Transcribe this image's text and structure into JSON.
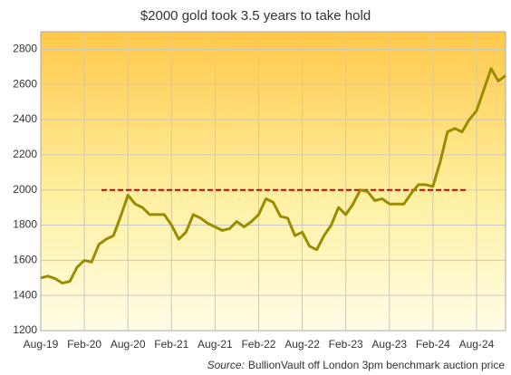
{
  "chart_data": {
    "type": "line",
    "title": "$2000 gold took 3.5 years to take hold",
    "source_label": "Source:",
    "source": "BullionVault off London 3pm benchmark auction price",
    "categories": [
      "Aug-19",
      null,
      null,
      null,
      null,
      null,
      "Feb-20",
      null,
      null,
      null,
      null,
      null,
      "Aug-20",
      null,
      null,
      null,
      null,
      null,
      "Feb-21",
      null,
      null,
      null,
      null,
      null,
      "Aug-21",
      null,
      null,
      null,
      null,
      null,
      "Feb-22",
      null,
      null,
      null,
      null,
      null,
      "Aug-22",
      null,
      null,
      null,
      null,
      null,
      "Feb-23",
      null,
      null,
      null,
      null,
      null,
      "Aug-23",
      null,
      null,
      null,
      null,
      null,
      "Feb-24",
      null,
      null,
      null,
      null,
      null,
      "Aug-24",
      null,
      null,
      null,
      null
    ],
    "series": [
      {
        "color": "#9a8c00",
        "values": [
          1500,
          1510,
          1495,
          1470,
          1480,
          1560,
          1600,
          1590,
          1690,
          1720,
          1740,
          1850,
          1970,
          1920,
          1900,
          1860,
          1860,
          1860,
          1800,
          1720,
          1760,
          1860,
          1840,
          1810,
          1790,
          1770,
          1780,
          1820,
          1790,
          1820,
          1860,
          1950,
          1930,
          1850,
          1840,
          1740,
          1760,
          1680,
          1660,
          1740,
          1800,
          1900,
          1860,
          1920,
          2000,
          1990,
          1940,
          1950,
          1920,
          1920,
          1920,
          1980,
          2030,
          2030,
          2020,
          2160,
          2330,
          2350,
          2330,
          2400,
          2450,
          2570,
          2690,
          2620,
          2650
        ]
      }
    ],
    "reference_line": {
      "value": 2000,
      "color": "#cc0000"
    },
    "ylim": [
      1200,
      2900
    ],
    "yticks": [
      1200,
      1400,
      1600,
      1800,
      2000,
      2200,
      2400,
      2600,
      2800
    ],
    "grid": true
  }
}
